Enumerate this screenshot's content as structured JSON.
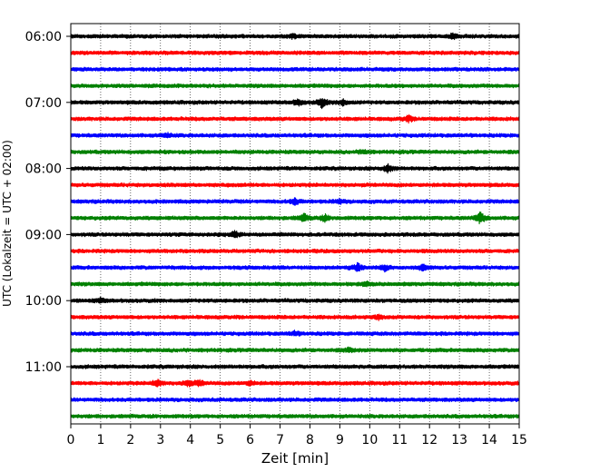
{
  "chart_data": {
    "type": "line",
    "title": "",
    "xlabel": "Zeit  [min]",
    "ylabel": "UTC (Lokalzeit = UTC + 02:00)",
    "xlim": [
      0,
      15
    ],
    "x_ticks": [
      "0",
      "1",
      "2",
      "3",
      "4",
      "5",
      "6",
      "7",
      "8",
      "9",
      "10",
      "11",
      "12",
      "13",
      "14",
      "15"
    ],
    "y_tick_labels": [
      "06:00",
      "07:00",
      "08:00",
      "09:00",
      "10:00",
      "11:00"
    ],
    "grid": "vertical-dotted",
    "legend": "none",
    "trace_interval_min": 15,
    "trace_start_utc": "06:00",
    "trace_end_utc": "11:45",
    "trace_colors": [
      "#000000",
      "#ff0000",
      "#0000ff",
      "#008000"
    ],
    "events": [
      {
        "trace": "06:00",
        "minute": 7.4,
        "amp": 2
      },
      {
        "trace": "06:00",
        "minute": 12.8,
        "amp": 3
      },
      {
        "trace": "07:00",
        "minute": 7.6,
        "amp": 3
      },
      {
        "trace": "07:00",
        "minute": 8.4,
        "amp": 5
      },
      {
        "trace": "07:00",
        "minute": 9.1,
        "amp": 3
      },
      {
        "trace": "07:15",
        "minute": 11.3,
        "amp": 3
      },
      {
        "trace": "07:30",
        "minute": 3.2,
        "amp": 2
      },
      {
        "trace": "07:45",
        "minute": 9.8,
        "amp": 2
      },
      {
        "trace": "08:00",
        "minute": 10.6,
        "amp": 4
      },
      {
        "trace": "08:30",
        "minute": 7.5,
        "amp": 3
      },
      {
        "trace": "08:30",
        "minute": 9.0,
        "amp": 2
      },
      {
        "trace": "08:45",
        "minute": 7.8,
        "amp": 4
      },
      {
        "trace": "08:45",
        "minute": 8.5,
        "amp": 3
      },
      {
        "trace": "08:45",
        "minute": 13.7,
        "amp": 6
      },
      {
        "trace": "09:00",
        "minute": 5.5,
        "amp": 3
      },
      {
        "trace": "09:30",
        "minute": 9.6,
        "amp": 4
      },
      {
        "trace": "09:30",
        "minute": 10.5,
        "amp": 3
      },
      {
        "trace": "09:30",
        "minute": 11.8,
        "amp": 3
      },
      {
        "trace": "09:45",
        "minute": 9.9,
        "amp": 2
      },
      {
        "trace": "10:00",
        "minute": 1.0,
        "amp": 2
      },
      {
        "trace": "10:15",
        "minute": 10.3,
        "amp": 2
      },
      {
        "trace": "10:30",
        "minute": 7.5,
        "amp": 2
      },
      {
        "trace": "10:45",
        "minute": 9.3,
        "amp": 2
      },
      {
        "trace": "11:15",
        "minute": 2.9,
        "amp": 4
      },
      {
        "trace": "11:15",
        "minute": 3.9,
        "amp": 3
      },
      {
        "trace": "11:15",
        "minute": 4.3,
        "amp": 3
      },
      {
        "trace": "11:15",
        "minute": 6.0,
        "amp": 2
      }
    ]
  }
}
